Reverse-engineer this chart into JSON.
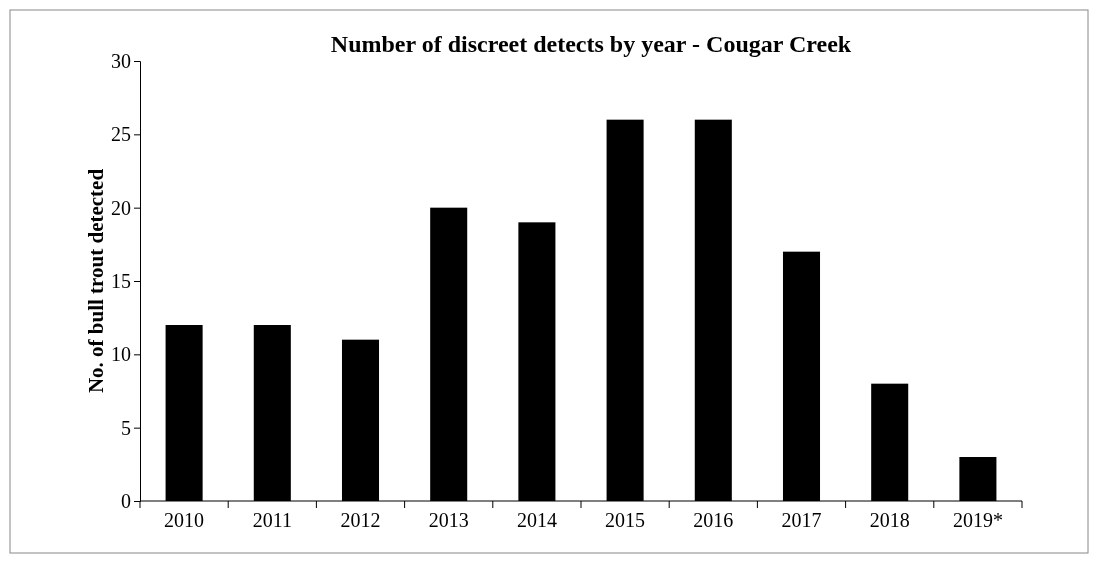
{
  "chart_data": {
    "type": "bar",
    "title": "Number of discreet detects by year - Cougar Creek",
    "ylabel": "No. of bull trout detected",
    "categories": [
      "2010",
      "2011",
      "2012",
      "2013",
      "2014",
      "2015",
      "2016",
      "2017",
      "2018",
      "2019*"
    ],
    "values": [
      12,
      12,
      11,
      20,
      19,
      26,
      26,
      17,
      8,
      3
    ],
    "color": "#000000",
    "ylim": [
      0,
      30
    ],
    "yticks": [
      0,
      5,
      10,
      15,
      20,
      25,
      30
    ],
    "grid": false
  }
}
